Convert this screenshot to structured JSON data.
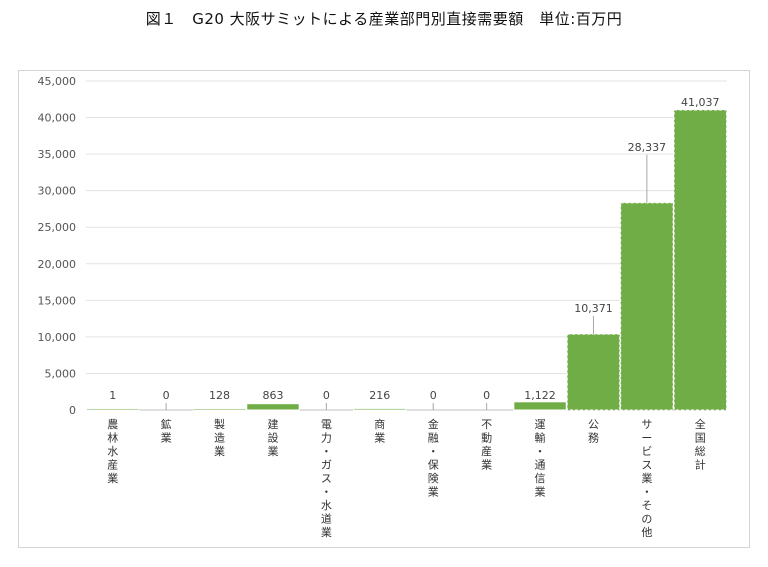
{
  "title": "図１　G20 大阪サミットによる産業部門別直接需要額　単位:百万円",
  "chart_data": {
    "type": "bar",
    "title": "図１　G20 大阪サミットによる産業部門別直接需要額　単位:百万円",
    "xlabel": "",
    "ylabel": "",
    "ylim": [
      0,
      45000
    ],
    "yticks": [
      0,
      5000,
      10000,
      15000,
      20000,
      25000,
      30000,
      35000,
      40000,
      45000
    ],
    "ytick_labels": [
      "0",
      "5,000",
      "10,000",
      "15,000",
      "20,000",
      "25,000",
      "30,000",
      "35,000",
      "40,000",
      "45,000"
    ],
    "grid": true,
    "legend": "none",
    "bar_color": "#70ad47",
    "categories": [
      "農林水産業",
      "鉱業",
      "製造業",
      "建設業",
      "電力・ガス・水道業",
      "商業",
      "金融・保険業",
      "不動産業",
      "運輸・通信業",
      "公務",
      "サービス業・その他",
      "全国総計"
    ],
    "values": [
      1,
      0,
      128,
      863,
      0,
      216,
      0,
      0,
      1122,
      10371,
      28337,
      41037
    ],
    "value_labels": [
      "1",
      "0",
      "128",
      "863",
      "0",
      "216",
      "0",
      "0",
      "1,122",
      "10,371",
      "28,337",
      "41,037"
    ]
  }
}
